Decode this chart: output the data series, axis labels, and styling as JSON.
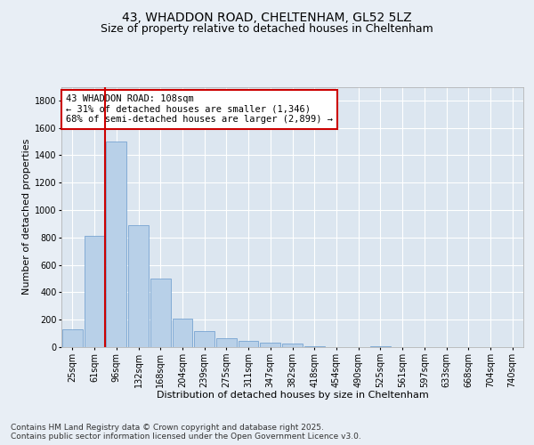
{
  "title_line1": "43, WHADDON ROAD, CHELTENHAM, GL52 5LZ",
  "title_line2": "Size of property relative to detached houses in Cheltenham",
  "xlabel": "Distribution of detached houses by size in Cheltenham",
  "ylabel": "Number of detached properties",
  "categories": [
    "25sqm",
    "61sqm",
    "96sqm",
    "132sqm",
    "168sqm",
    "204sqm",
    "239sqm",
    "275sqm",
    "311sqm",
    "347sqm",
    "382sqm",
    "418sqm",
    "454sqm",
    "490sqm",
    "525sqm",
    "561sqm",
    "597sqm",
    "633sqm",
    "668sqm",
    "704sqm",
    "740sqm"
  ],
  "bar_heights": [
    130,
    810,
    1500,
    890,
    500,
    210,
    115,
    65,
    45,
    35,
    25,
    5,
    0,
    0,
    5,
    0,
    0,
    0,
    0,
    0,
    0
  ],
  "bar_color": "#b8d0e8",
  "bar_edge_color": "#6699cc",
  "vline_x": 1.5,
  "vline_color": "#cc0000",
  "annotation_text": "43 WHADDON ROAD: 108sqm\n← 31% of detached houses are smaller (1,346)\n68% of semi-detached houses are larger (2,899) →",
  "annotation_box_color": "#ffffff",
  "annotation_border_color": "#cc0000",
  "ylim": [
    0,
    1900
  ],
  "yticks": [
    0,
    200,
    400,
    600,
    800,
    1000,
    1200,
    1400,
    1600,
    1800
  ],
  "footer_text": "Contains HM Land Registry data © Crown copyright and database right 2025.\nContains public sector information licensed under the Open Government Licence v3.0.",
  "background_color": "#e8eef5",
  "plot_background_color": "#dce6f0",
  "grid_color": "#ffffff",
  "title_fontsize": 10,
  "subtitle_fontsize": 9,
  "axis_label_fontsize": 8,
  "tick_fontsize": 7,
  "annotation_fontsize": 7.5,
  "footer_fontsize": 6.5
}
